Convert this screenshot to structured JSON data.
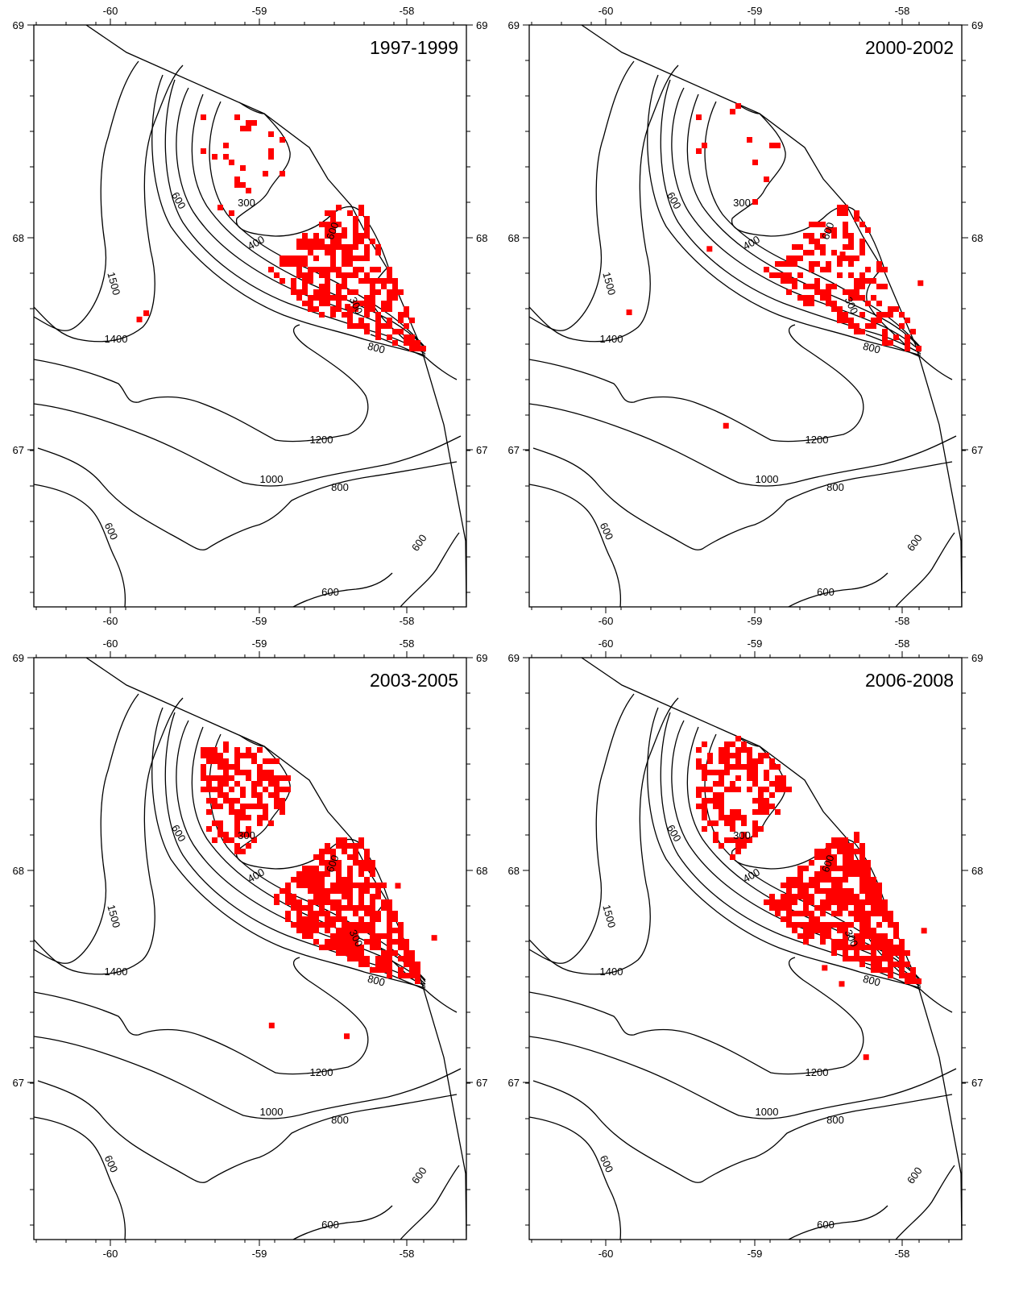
{
  "colors": {
    "fishing": "#ff0000",
    "contour": "#000000",
    "frame": "#000000",
    "background": "#ffffff"
  },
  "axes": {
    "x_ticks": [
      "-60",
      "-59",
      "-58"
    ],
    "y_ticks": [
      "69",
      "68",
      "67"
    ]
  },
  "contour_labels": [
    "300",
    "400",
    "600",
    "800",
    "1000",
    "1200",
    "1400",
    "1500"
  ],
  "panels": [
    {
      "period": "1997-1999",
      "density": "medium"
    },
    {
      "period": "2000-2002",
      "density": "low"
    },
    {
      "period": "2003-2005",
      "density": "high"
    },
    {
      "period": "2006-2008",
      "density": "high"
    }
  ]
}
